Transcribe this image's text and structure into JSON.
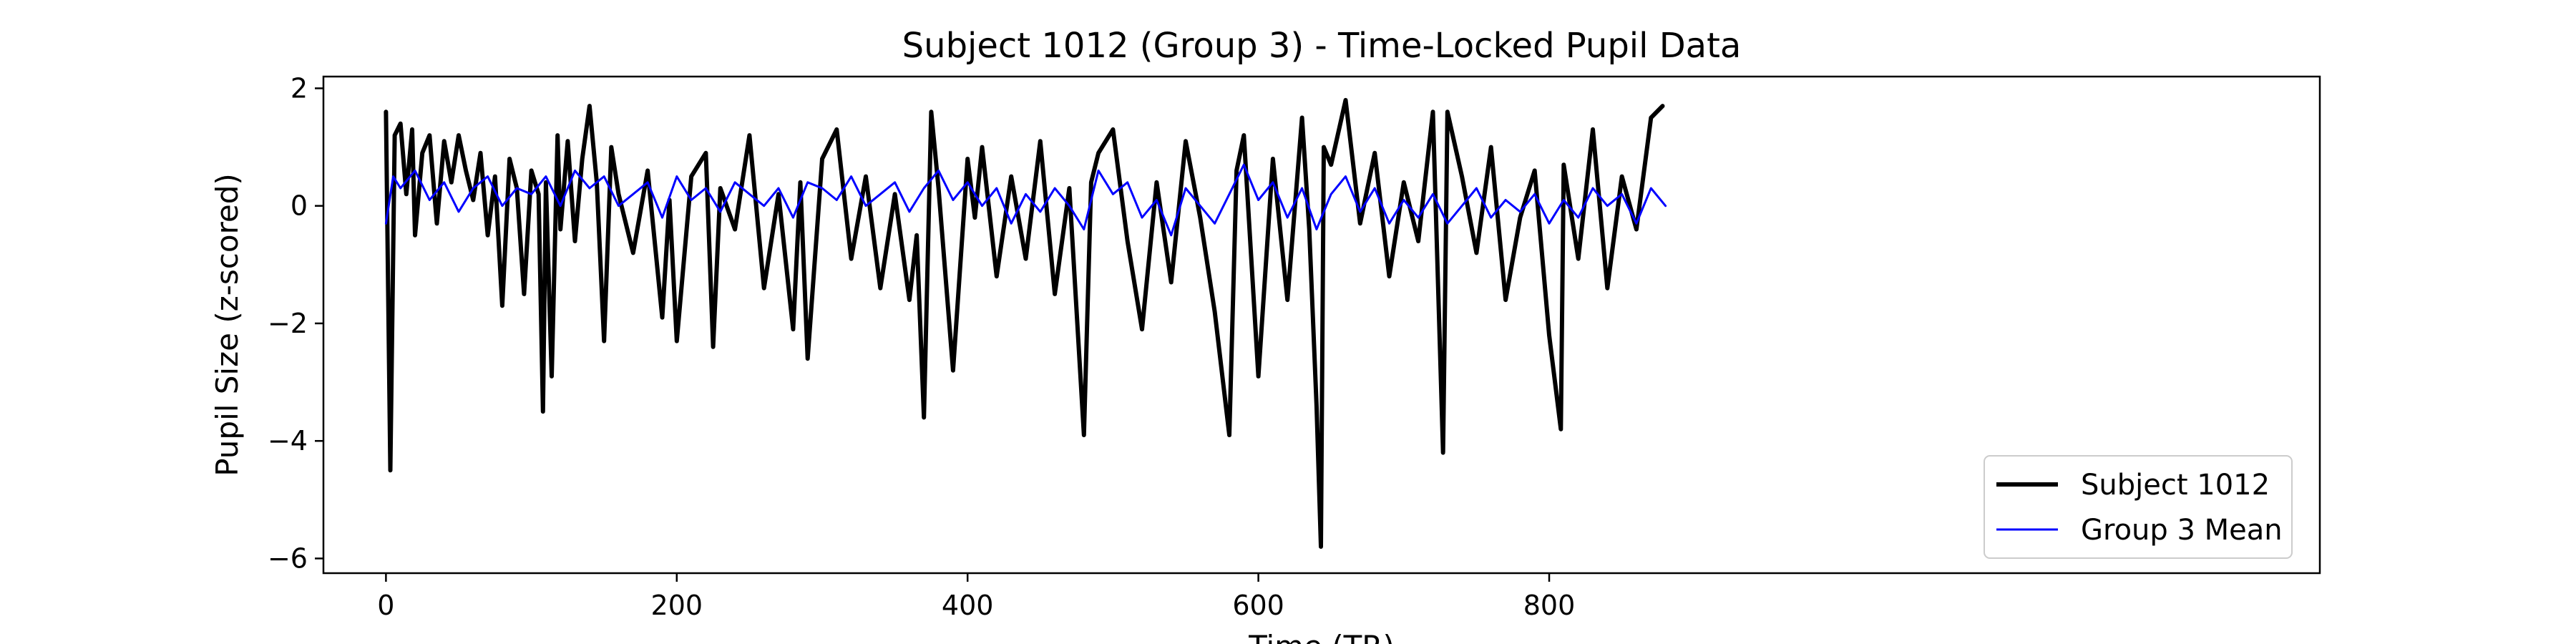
{
  "chart_data": {
    "type": "line",
    "title": "Subject 1012 (Group 3) - Time-Locked Pupil Data",
    "xlabel": "Time (TR)",
    "ylabel": "Pupil Size (z-scored)",
    "xlim": [
      -43,
      1330
    ],
    "ylim": [
      -6.25,
      2.2
    ],
    "xticks": [
      0,
      200,
      400,
      600,
      800
    ],
    "xtick_labels": [
      "0",
      "200",
      "400",
      "600",
      "800"
    ],
    "yticks": [
      -6,
      -4,
      -2,
      0,
      2
    ],
    "ytick_labels": [
      "−6",
      "−4",
      "−2",
      "0",
      "2"
    ],
    "grid": false,
    "legend_position": "lower-right",
    "series": [
      {
        "name": "Subject 1012",
        "color": "#000000",
        "x": [
          0,
          3,
          6,
          10,
          14,
          18,
          20,
          25,
          30,
          35,
          40,
          45,
          50,
          55,
          60,
          65,
          70,
          75,
          80,
          85,
          90,
          95,
          100,
          105,
          108,
          110,
          114,
          118,
          120,
          125,
          130,
          135,
          140,
          145,
          150,
          155,
          160,
          170,
          180,
          190,
          195,
          200,
          210,
          220,
          225,
          230,
          240,
          250,
          260,
          270,
          280,
          285,
          290,
          300,
          310,
          320,
          330,
          340,
          350,
          360,
          365,
          370,
          375,
          380,
          390,
          400,
          405,
          410,
          420,
          430,
          440,
          450,
          460,
          470,
          480,
          485,
          490,
          500,
          510,
          520,
          530,
          540,
          550,
          560,
          570,
          580,
          585,
          590,
          600,
          610,
          620,
          630,
          635,
          640,
          643,
          645,
          650,
          660,
          670,
          680,
          690,
          700,
          710,
          720,
          727,
          730,
          740,
          750,
          760,
          770,
          780,
          790,
          800,
          808,
          810,
          820,
          830,
          840,
          850,
          860,
          870,
          878
        ],
        "values": [
          1.6,
          -4.5,
          1.2,
          1.4,
          0.2,
          1.3,
          -0.5,
          0.9,
          1.2,
          -0.3,
          1.1,
          0.4,
          1.2,
          0.6,
          0.1,
          0.9,
          -0.5,
          0.5,
          -1.7,
          0.8,
          0.3,
          -1.5,
          0.6,
          0.2,
          -3.5,
          0.4,
          -2.9,
          1.2,
          -0.4,
          1.1,
          -0.6,
          0.8,
          1.7,
          0.4,
          -2.3,
          1.0,
          0.2,
          -0.8,
          0.6,
          -1.9,
          0.1,
          -2.3,
          0.5,
          0.9,
          -2.4,
          0.3,
          -0.4,
          1.2,
          -1.4,
          0.2,
          -2.1,
          0.4,
          -2.6,
          0.8,
          1.3,
          -0.9,
          0.5,
          -1.4,
          0.2,
          -1.6,
          -0.5,
          -3.6,
          1.6,
          0.3,
          -2.8,
          0.8,
          -0.2,
          1.0,
          -1.2,
          0.5,
          -0.9,
          1.1,
          -1.5,
          0.3,
          -3.9,
          0.4,
          0.9,
          1.3,
          -0.6,
          -2.1,
          0.4,
          -1.3,
          1.1,
          -0.2,
          -1.8,
          -3.9,
          0.6,
          1.2,
          -2.9,
          0.8,
          -1.6,
          1.5,
          -0.4,
          -3.4,
          -5.8,
          1.0,
          0.7,
          1.8,
          -0.3,
          0.9,
          -1.2,
          0.4,
          -0.6,
          1.6,
          -4.2,
          1.6,
          0.5,
          -0.8,
          1.0,
          -1.6,
          -0.2,
          0.6,
          -2.2,
          -3.8,
          0.7,
          -0.9,
          1.3,
          -1.4,
          0.5,
          -0.4,
          1.5,
          1.7
        ]
      },
      {
        "name": "Group 3 Mean",
        "color": "#0000ff",
        "x": [
          0,
          5,
          10,
          20,
          30,
          40,
          50,
          60,
          70,
          80,
          90,
          100,
          110,
          120,
          130,
          140,
          150,
          160,
          170,
          180,
          190,
          200,
          210,
          220,
          230,
          240,
          250,
          260,
          270,
          280,
          290,
          300,
          310,
          320,
          330,
          340,
          350,
          360,
          370,
          380,
          390,
          400,
          410,
          420,
          430,
          440,
          450,
          460,
          470,
          480,
          490,
          500,
          510,
          520,
          530,
          540,
          550,
          560,
          570,
          580,
          590,
          600,
          610,
          620,
          630,
          640,
          650,
          660,
          670,
          680,
          690,
          700,
          710,
          720,
          730,
          740,
          750,
          760,
          770,
          780,
          790,
          800,
          810,
          820,
          830,
          840,
          850,
          860,
          870,
          880
        ],
        "values": [
          -0.3,
          0.5,
          0.3,
          0.6,
          0.1,
          0.4,
          -0.1,
          0.3,
          0.5,
          0.0,
          0.3,
          0.2,
          0.5,
          0.0,
          0.6,
          0.3,
          0.5,
          0.0,
          0.2,
          0.4,
          -0.2,
          0.5,
          0.1,
          0.3,
          -0.1,
          0.4,
          0.2,
          0.0,
          0.3,
          -0.2,
          0.4,
          0.3,
          0.1,
          0.5,
          0.0,
          0.2,
          0.4,
          -0.1,
          0.3,
          0.6,
          0.1,
          0.4,
          0.0,
          0.3,
          -0.3,
          0.2,
          -0.1,
          0.3,
          0.0,
          -0.4,
          0.6,
          0.2,
          0.4,
          -0.2,
          0.1,
          -0.5,
          0.3,
          0.0,
          -0.3,
          0.2,
          0.7,
          0.1,
          0.4,
          -0.2,
          0.3,
          -0.4,
          0.2,
          0.5,
          -0.1,
          0.3,
          -0.3,
          0.1,
          -0.2,
          0.2,
          -0.3,
          0.0,
          0.3,
          -0.2,
          0.1,
          -0.1,
          0.2,
          -0.3,
          0.1,
          -0.2,
          0.3,
          0.0,
          0.2,
          -0.3,
          0.3,
          0.0
        ]
      }
    ]
  }
}
